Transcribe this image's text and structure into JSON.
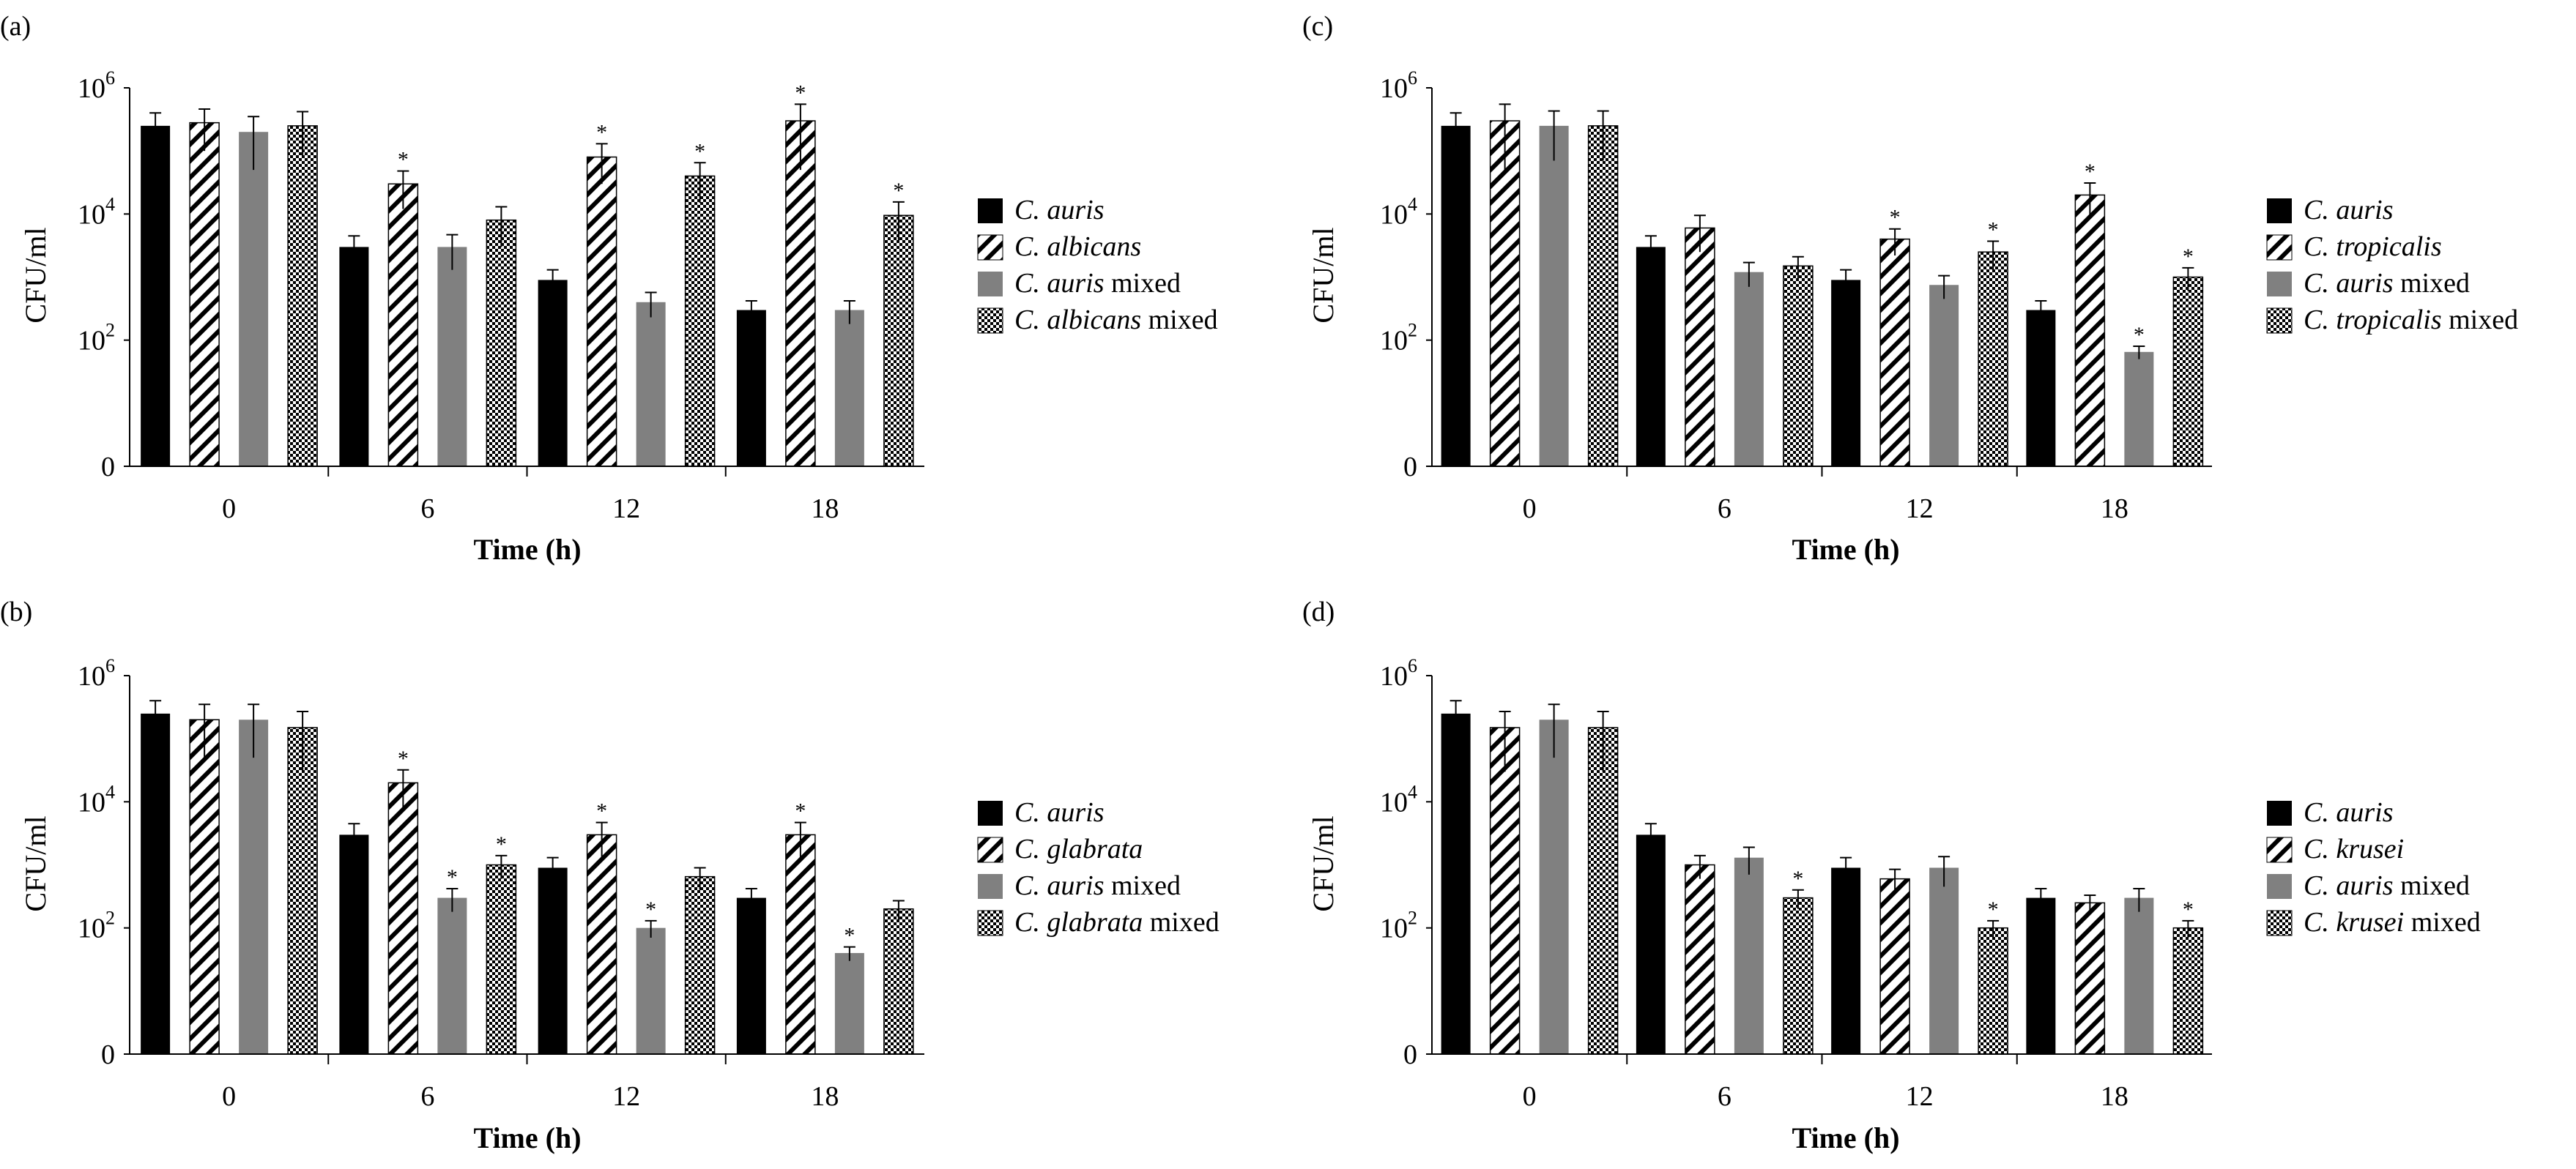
{
  "chart_data": [
    {
      "panel_label": "(a)",
      "type": "bar",
      "title": "",
      "xlabel": "Time (h)",
      "ylabel": "CFU/ml",
      "yscale": "log10",
      "yticks": [
        {
          "exponent": 0,
          "base": "0",
          "sup": ""
        },
        {
          "exponent": 2,
          "base": "10",
          "sup": "2"
        },
        {
          "exponent": 4,
          "base": "10",
          "sup": "4"
        },
        {
          "exponent": 6,
          "base": "10",
          "sup": "6"
        }
      ],
      "categories": [
        "0",
        "6",
        "12",
        "18"
      ],
      "series": [
        {
          "italic": "C. auris",
          "rest": "",
          "fill": "solid",
          "values": [
            250000,
            3000,
            900,
            300
          ],
          "errors": [
            150000,
            1500,
            400,
            120
          ],
          "significant": [
            false,
            false,
            false,
            false
          ]
        },
        {
          "italic": "C. albicans",
          "rest": "",
          "fill": "hatch",
          "values": [
            280000,
            30000,
            80000,
            300000
          ],
          "errors": [
            180000,
            18000,
            50000,
            250000
          ],
          "significant": [
            false,
            true,
            true,
            true
          ]
        },
        {
          "italic": "C. auris",
          "rest": " mixed",
          "fill": "gray",
          "values": [
            200000,
            3000,
            400,
            300
          ],
          "errors": [
            150000,
            1700,
            170,
            120
          ],
          "significant": [
            false,
            false,
            false,
            false
          ]
        },
        {
          "italic": "C. albicans",
          "rest": " mixed",
          "fill": "check",
          "values": [
            250000,
            8000,
            40000,
            9500
          ],
          "errors": [
            170000,
            5000,
            25000,
            6000
          ],
          "significant": [
            false,
            false,
            true,
            true
          ]
        }
      ]
    },
    {
      "panel_label": "(b)",
      "type": "bar",
      "title": "",
      "xlabel": "Time (h)",
      "ylabel": "CFU/ml",
      "yscale": "log10",
      "yticks": [
        {
          "exponent": 0,
          "base": "0",
          "sup": ""
        },
        {
          "exponent": 2,
          "base": "10",
          "sup": "2"
        },
        {
          "exponent": 4,
          "base": "10",
          "sup": "4"
        },
        {
          "exponent": 6,
          "base": "10",
          "sup": "6"
        }
      ],
      "categories": [
        "0",
        "6",
        "12",
        "18"
      ],
      "series": [
        {
          "italic": "C. auris",
          "rest": "",
          "fill": "solid",
          "values": [
            250000,
            3000,
            900,
            300
          ],
          "errors": [
            150000,
            1500,
            400,
            120
          ],
          "significant": [
            false,
            false,
            false,
            false
          ]
        },
        {
          "italic": "C. glabrata",
          "rest": "",
          "fill": "hatch",
          "values": [
            200000,
            20000,
            3000,
            3000
          ],
          "errors": [
            150000,
            12000,
            1700,
            1700
          ],
          "significant": [
            false,
            true,
            true,
            true
          ]
        },
        {
          "italic": "C. auris",
          "rest": " mixed",
          "fill": "gray",
          "values": [
            200000,
            300,
            100,
            40
          ],
          "errors": [
            150000,
            120,
            30,
            10
          ],
          "significant": [
            false,
            true,
            true,
            true
          ]
        },
        {
          "italic": "C. glabrata",
          "rest": " mixed",
          "fill": "check",
          "values": [
            150000,
            1000,
            650,
            200
          ],
          "errors": [
            120000,
            400,
            250,
            70
          ],
          "significant": [
            false,
            true,
            false,
            false
          ]
        }
      ]
    },
    {
      "panel_label": "(c)",
      "type": "bar",
      "title": "",
      "xlabel": "Time (h)",
      "ylabel": "CFU/ml",
      "yscale": "log10",
      "yticks": [
        {
          "exponent": 0,
          "base": "0",
          "sup": ""
        },
        {
          "exponent": 2,
          "base": "10",
          "sup": "2"
        },
        {
          "exponent": 4,
          "base": "10",
          "sup": "4"
        },
        {
          "exponent": 6,
          "base": "10",
          "sup": "6"
        }
      ],
      "categories": [
        "0",
        "6",
        "12",
        "18"
      ],
      "series": [
        {
          "italic": "C. auris",
          "rest": "",
          "fill": "solid",
          "values": [
            250000,
            3000,
            900,
            300
          ],
          "errors": [
            150000,
            1500,
            400,
            120
          ],
          "significant": [
            false,
            false,
            false,
            false
          ]
        },
        {
          "italic": "C. tropicalis",
          "rest": "",
          "fill": "hatch",
          "values": [
            300000,
            6000,
            4000,
            20000
          ],
          "errors": [
            250000,
            3500,
            1800,
            11000
          ],
          "significant": [
            false,
            false,
            true,
            true
          ]
        },
        {
          "italic": "C. auris",
          "rest": " mixed",
          "fill": "gray",
          "values": [
            250000,
            1200,
            750,
            65
          ],
          "errors": [
            180000,
            500,
            300,
            15
          ],
          "significant": [
            false,
            false,
            false,
            true
          ]
        },
        {
          "italic": "C. tropicalis",
          "rest": " mixed",
          "fill": "check",
          "values": [
            250000,
            1500,
            2500,
            1000
          ],
          "errors": [
            180000,
            600,
            1200,
            400
          ],
          "significant": [
            false,
            false,
            true,
            true
          ]
        }
      ]
    },
    {
      "panel_label": "(d)",
      "type": "bar",
      "title": "",
      "xlabel": "Time (h)",
      "ylabel": "CFU/ml",
      "yscale": "log10",
      "yticks": [
        {
          "exponent": 0,
          "base": "0",
          "sup": ""
        },
        {
          "exponent": 2,
          "base": "10",
          "sup": "2"
        },
        {
          "exponent": 4,
          "base": "10",
          "sup": "4"
        },
        {
          "exponent": 6,
          "base": "10",
          "sup": "6"
        }
      ],
      "categories": [
        "0",
        "6",
        "12",
        "18"
      ],
      "series": [
        {
          "italic": "C. auris",
          "rest": "",
          "fill": "solid",
          "values": [
            250000,
            3000,
            900,
            300
          ],
          "errors": [
            150000,
            1500,
            400,
            120
          ],
          "significant": [
            false,
            false,
            false,
            false
          ]
        },
        {
          "italic": "C. krusei",
          "rest": "",
          "fill": "hatch",
          "values": [
            150000,
            1000,
            600,
            250
          ],
          "errors": [
            120000,
            400,
            250,
            80
          ],
          "significant": [
            false,
            false,
            false,
            false
          ]
        },
        {
          "italic": "C. auris",
          "rest": " mixed",
          "fill": "gray",
          "values": [
            200000,
            1300,
            900,
            300
          ],
          "errors": [
            150000,
            600,
            450,
            120
          ],
          "significant": [
            false,
            false,
            false,
            false
          ]
        },
        {
          "italic": "C. krusei",
          "rest": " mixed",
          "fill": "check",
          "values": [
            150000,
            300,
            100,
            100
          ],
          "errors": [
            120000,
            100,
            30,
            30
          ],
          "significant": [
            false,
            true,
            true,
            true
          ]
        }
      ]
    }
  ],
  "colors": {
    "solid": "#000000",
    "gray": "#808080",
    "hatch_stroke": "#000000",
    "check_stroke": "#000000",
    "axis": "#000000",
    "significance_marker": "*"
  }
}
